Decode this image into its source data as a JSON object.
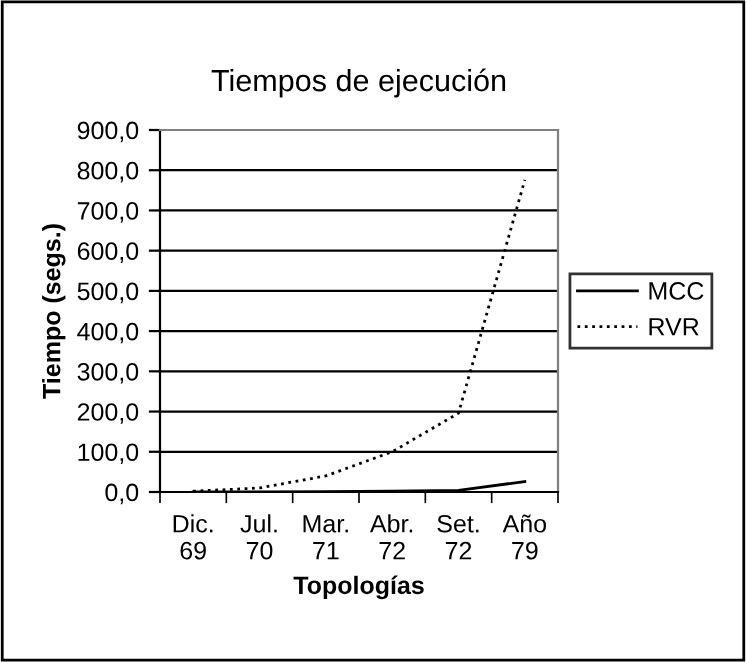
{
  "chart_data": {
    "type": "line",
    "title": "Tiempos de ejecución",
    "xlabel": "Topologías",
    "ylabel": "Tiempo (segs.)",
    "categories": [
      "Dic.\n69",
      "Jul.\n70",
      "Mar.\n71",
      "Abr.\n72",
      "Set.\n72",
      "Año\n79"
    ],
    "series": [
      {
        "name": "MCC",
        "color": "#000000",
        "line_style": "solid",
        "values": [
          0,
          0,
          1,
          2,
          4,
          26
        ]
      },
      {
        "name": "RVR",
        "color": "#000000",
        "line_style": "dotted",
        "values": [
          2,
          10,
          40,
          100,
          196,
          776
        ]
      }
    ],
    "ylim": [
      0,
      900
    ],
    "yticks": [
      {
        "value": 0,
        "label": "0,0"
      },
      {
        "value": 100,
        "label": "100,0"
      },
      {
        "value": 200,
        "label": "200,0"
      },
      {
        "value": 300,
        "label": "300,0"
      },
      {
        "value": 400,
        "label": "400,0"
      },
      {
        "value": 500,
        "label": "500,0"
      },
      {
        "value": 600,
        "label": "600,0"
      },
      {
        "value": 700,
        "label": "700,0"
      },
      {
        "value": 800,
        "label": "800,0"
      },
      {
        "value": 900,
        "label": "900,0"
      }
    ],
    "grid": "y",
    "legend": "right",
    "marker": "none"
  }
}
